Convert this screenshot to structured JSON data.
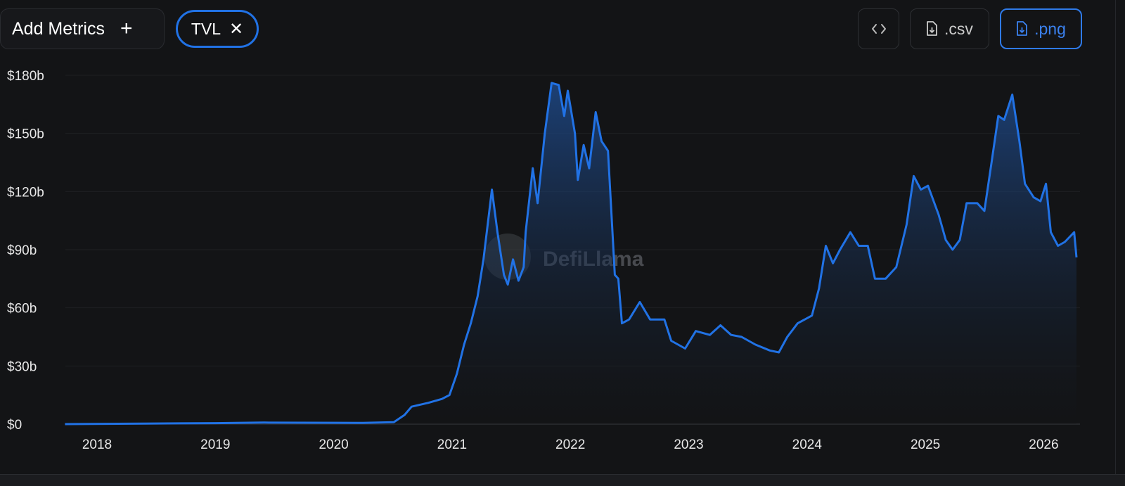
{
  "toolbar": {
    "add_metrics_label": "Add Metrics",
    "add_icon": "+",
    "metric_chip_label": "TVL",
    "remove_icon": "✕",
    "embed_icon": "‹›",
    "csv_label": ".csv",
    "png_label": ".png"
  },
  "watermark": "DefiLlama",
  "colors": {
    "line": "#2172e5",
    "accent": "#2f7ae8",
    "background": "#131416"
  },
  "chart_data": {
    "type": "area",
    "title": "",
    "xlabel": "",
    "ylabel": "",
    "ylim": [
      0,
      180
    ],
    "yticks": [
      0,
      30,
      60,
      90,
      120,
      150,
      180
    ],
    "ytick_labels": [
      "$0",
      "$30b",
      "$60b",
      "$90b",
      "$120b",
      "$150b",
      "$180b"
    ],
    "xtick_labels": [
      "2018",
      "2019",
      "2020",
      "2021",
      "2022",
      "2023",
      "2024",
      "2025",
      "2026"
    ],
    "grid": true,
    "legend": "none",
    "series": [
      {
        "points": [
          [
            "2017-09-24",
            0
          ],
          [
            "2018-06-01",
            0.3
          ],
          [
            "2019-01-01",
            0.5
          ],
          [
            "2019-06-01",
            0.8
          ],
          [
            "2020-01-01",
            0.7
          ],
          [
            "2020-04-01",
            0.6
          ],
          [
            "2020-07-05",
            1
          ],
          [
            "2020-08-07",
            4.7
          ],
          [
            "2020-08-29",
            9
          ],
          [
            "2020-10-20",
            11
          ],
          [
            "2020-12-01",
            13
          ],
          [
            "2020-12-24",
            15
          ],
          [
            "2021-01-16",
            26
          ],
          [
            "2021-02-07",
            41
          ],
          [
            "2021-02-28",
            52
          ],
          [
            "2021-03-21",
            66
          ],
          [
            "2021-04-08",
            85
          ],
          [
            "2021-05-04",
            121
          ],
          [
            "2021-05-21",
            99
          ],
          [
            "2021-06-10",
            77
          ],
          [
            "2021-06-22",
            72
          ],
          [
            "2021-07-08",
            85
          ],
          [
            "2021-07-25",
            74
          ],
          [
            "2021-08-10",
            81
          ],
          [
            "2021-08-16",
            99
          ],
          [
            "2021-09-07",
            132
          ],
          [
            "2021-09-22",
            114
          ],
          [
            "2021-10-14",
            150
          ],
          [
            "2021-11-04",
            176
          ],
          [
            "2021-11-26",
            175
          ],
          [
            "2021-12-13",
            159
          ],
          [
            "2021-12-24",
            172
          ],
          [
            "2022-01-15",
            150
          ],
          [
            "2022-01-24",
            126
          ],
          [
            "2022-02-11",
            144
          ],
          [
            "2022-02-28",
            132
          ],
          [
            "2022-03-20",
            161
          ],
          [
            "2022-04-07",
            146
          ],
          [
            "2022-04-27",
            141
          ],
          [
            "2022-05-18",
            77
          ],
          [
            "2022-05-29",
            75
          ],
          [
            "2022-06-09",
            52
          ],
          [
            "2022-07-01",
            54
          ],
          [
            "2022-08-03",
            63
          ],
          [
            "2022-09-04",
            54
          ],
          [
            "2022-10-18",
            54
          ],
          [
            "2022-11-08",
            43
          ],
          [
            "2022-12-21",
            39
          ],
          [
            "2023-01-23",
            48
          ],
          [
            "2023-03-07",
            46
          ],
          [
            "2023-04-09",
            51
          ],
          [
            "2023-05-12",
            46
          ],
          [
            "2023-06-13",
            45
          ],
          [
            "2023-07-26",
            41
          ],
          [
            "2023-09-08",
            38
          ],
          [
            "2023-10-06",
            37
          ],
          [
            "2023-11-01",
            45
          ],
          [
            "2023-12-03",
            52
          ],
          [
            "2024-01-16",
            56
          ],
          [
            "2024-02-07",
            70
          ],
          [
            "2024-02-28",
            92
          ],
          [
            "2024-03-21",
            83
          ],
          [
            "2024-04-12",
            90
          ],
          [
            "2024-05-14",
            99
          ],
          [
            "2024-06-09",
            92
          ],
          [
            "2024-07-07",
            92
          ],
          [
            "2024-07-29",
            75
          ],
          [
            "2024-08-31",
            75
          ],
          [
            "2024-10-03",
            81
          ],
          [
            "2024-11-04",
            103
          ],
          [
            "2024-11-26",
            128
          ],
          [
            "2024-12-18",
            121
          ],
          [
            "2025-01-09",
            123
          ],
          [
            "2025-02-11",
            108
          ],
          [
            "2025-03-05",
            95
          ],
          [
            "2025-03-26",
            90
          ],
          [
            "2025-04-17",
            95
          ],
          [
            "2025-05-08",
            114
          ],
          [
            "2025-06-10",
            114
          ],
          [
            "2025-07-02",
            110
          ],
          [
            "2025-07-24",
            135
          ],
          [
            "2025-08-14",
            159
          ],
          [
            "2025-09-01",
            157
          ],
          [
            "2025-09-26",
            170
          ],
          [
            "2025-10-18",
            146
          ],
          [
            "2025-11-04",
            124
          ],
          [
            "2025-12-01",
            117
          ],
          [
            "2025-12-22",
            115
          ],
          [
            "2026-01-08",
            124
          ],
          [
            "2026-01-23",
            99
          ],
          [
            "2026-02-14",
            92
          ],
          [
            "2026-03-07",
            94
          ],
          [
            "2026-04-05",
            99
          ],
          [
            "2026-04-12",
            86
          ]
        ]
      }
    ]
  }
}
